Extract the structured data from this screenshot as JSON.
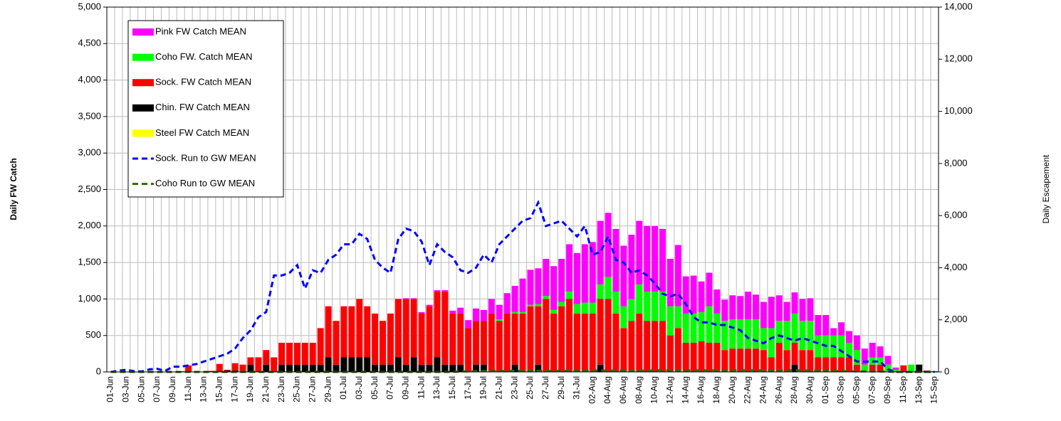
{
  "chart_data": {
    "type": "bar",
    "ylabel": "Daily FW Catch",
    "y2label": "Daily Escapement",
    "grid": true,
    "legend": "top-left",
    "ylim": [
      0,
      5000
    ],
    "yticks": [
      0,
      500,
      {
        "value": 1000,
        "label": "1,000"
      },
      {
        "value": 1500,
        "label": "1,500"
      },
      {
        "value": 2000,
        "label": "2,000"
      },
      {
        "value": 2500,
        "label": "2,500"
      },
      {
        "value": 3000,
        "label": "3,000"
      },
      {
        "value": 3500,
        "label": "3,500"
      },
      {
        "value": 4000,
        "label": "4,000"
      },
      {
        "value": 4500,
        "label": "4,500"
      },
      {
        "value": 5000,
        "label": "5,000"
      }
    ],
    "y2lim": [
      0,
      14000
    ],
    "y2ticks": [
      0,
      {
        "value": 2000,
        "label": "2,000"
      },
      {
        "value": 4000,
        "label": "4,000"
      },
      {
        "value": 6000,
        "label": "6,000"
      },
      {
        "value": 8000,
        "label": "8,000"
      },
      {
        "value": 10000,
        "label": "10,000"
      },
      {
        "value": 12000,
        "label": "12,000"
      },
      {
        "value": 14000,
        "label": "14,000"
      }
    ],
    "categories": [
      "01-Jun",
      null,
      "03-Jun",
      null,
      "05-Jun",
      null,
      "07-Jun",
      null,
      "09-Jun",
      null,
      "11-Jun",
      null,
      "13-Jun",
      null,
      "15-Jun",
      null,
      "17-Jun",
      null,
      "19-Jun",
      null,
      "21-Jun",
      null,
      "23-Jun",
      null,
      "25-Jun",
      null,
      "27-Jun",
      null,
      "29-Jun",
      null,
      "01-Jul",
      null,
      "03-Jul",
      null,
      "05-Jul",
      null,
      "07-Jul",
      null,
      "09-Jul",
      null,
      "11-Jul",
      null,
      "13-Jul",
      null,
      "15-Jul",
      null,
      "17-Jul",
      null,
      "19-Jul",
      null,
      "21-Jul",
      null,
      "23-Jul",
      null,
      "25-Jul",
      null,
      "27-Jul",
      null,
      "29-Jul",
      null,
      "31-Jul",
      null,
      "02-Aug",
      null,
      "04-Aug",
      null,
      "06-Aug",
      null,
      "08-Aug",
      null,
      "10-Aug",
      null,
      "12-Aug",
      null,
      "14-Aug",
      null,
      "16-Aug",
      null,
      "18-Aug",
      null,
      "20-Aug",
      null,
      "22-Aug",
      null,
      "24-Aug",
      null,
      "26-Aug",
      null,
      "28-Aug",
      null,
      "30-Aug",
      null,
      "01-Sep",
      null,
      "03-Sep",
      null,
      "05-Sep",
      null,
      "07-Sep",
      null,
      "09-Sep",
      null,
      "11-Sep",
      null,
      "13-Sep",
      null,
      "15-Sep"
    ],
    "series": [
      {
        "name": "Pink FW Catch MEAN",
        "type": "bar",
        "color": "#ff00ff",
        "values": [
          0,
          0,
          0,
          0,
          0,
          0,
          0,
          0,
          0,
          0,
          0,
          0,
          0,
          0,
          0,
          0,
          0,
          0,
          0,
          0,
          0,
          0,
          0,
          0,
          0,
          0,
          0,
          0,
          0,
          0,
          0,
          0,
          0,
          0,
          0,
          0,
          0,
          0,
          10,
          10,
          20,
          20,
          20,
          20,
          40,
          80,
          110,
          170,
          150,
          200,
          200,
          280,
          360,
          460,
          480,
          490,
          510,
          600,
          590,
          650,
          700,
          800,
          830,
          870,
          880,
          860,
          830,
          880,
          870,
          900,
          900,
          860,
          650,
          840,
          510,
          520,
          420,
          460,
          330,
          290,
          330,
          320,
          380,
          340,
          360,
          430,
          350,
          260,
          290,
          300,
          310,
          280,
          280,
          100,
          180,
          160,
          200,
          220,
          200,
          150,
          120,
          30,
          0,
          0,
          0,
          0,
          0
        ]
      },
      {
        "name": "Coho FW. Catch MEAN",
        "type": "bar",
        "color": "#00ff00",
        "values": [
          0,
          0,
          0,
          0,
          0,
          0,
          0,
          0,
          0,
          0,
          0,
          0,
          0,
          0,
          0,
          0,
          0,
          0,
          0,
          0,
          0,
          0,
          0,
          0,
          0,
          0,
          0,
          0,
          0,
          0,
          0,
          0,
          0,
          0,
          0,
          0,
          0,
          0,
          0,
          0,
          0,
          0,
          0,
          0,
          0,
          0,
          0,
          0,
          0,
          0,
          20,
          0,
          20,
          20,
          20,
          30,
          40,
          50,
          60,
          100,
          130,
          150,
          150,
          200,
          300,
          300,
          300,
          300,
          400,
          400,
          400,
          400,
          400,
          300,
          400,
          400,
          400,
          500,
          400,
          400,
          400,
          400,
          400,
          400,
          300,
          400,
          300,
          400,
          400,
          400,
          400,
          300,
          300,
          300,
          300,
          200,
          200,
          100,
          100,
          100,
          100,
          30,
          0,
          100,
          0,
          0,
          0
        ]
      },
      {
        "name": "Sock. FW Catch MEAN",
        "type": "bar",
        "color": "#ff0000",
        "values": [
          0,
          0,
          0,
          0,
          0,
          0,
          0,
          0,
          0,
          10,
          90,
          0,
          5,
          15,
          110,
          10,
          100,
          100,
          100,
          200,
          200,
          200,
          300,
          300,
          300,
          300,
          300,
          500,
          700,
          600,
          700,
          700,
          800,
          700,
          700,
          600,
          700,
          800,
          900,
          800,
          700,
          800,
          900,
          1000,
          700,
          700,
          600,
          600,
          600,
          800,
          700,
          800,
          700,
          800,
          900,
          800,
          1000,
          800,
          900,
          1000,
          800,
          800,
          800,
          900,
          1000,
          800,
          600,
          700,
          800,
          700,
          700,
          700,
          500,
          600,
          400,
          400,
          420,
          400,
          400,
          300,
          320,
          320,
          320,
          320,
          300,
          200,
          400,
          300,
          300,
          300,
          300,
          200,
          200,
          200,
          200,
          200,
          100,
          0,
          100,
          100,
          0,
          0,
          90,
          0,
          0,
          20,
          10
        ]
      },
      {
        "name": "Chin. FW Catch MEAN",
        "type": "bar",
        "color": "#000000",
        "values": [
          0,
          0,
          0,
          0,
          0,
          0,
          0,
          0,
          0,
          0,
          0,
          0,
          0,
          0,
          0,
          20,
          20,
          0,
          100,
          0,
          100,
          0,
          100,
          100,
          100,
          100,
          100,
          100,
          200,
          100,
          200,
          200,
          200,
          200,
          100,
          100,
          100,
          200,
          100,
          200,
          100,
          100,
          200,
          100,
          100,
          100,
          0,
          100,
          100,
          0,
          0,
          0,
          100,
          0,
          0,
          100,
          0,
          0,
          0,
          0,
          0,
          0,
          0,
          100,
          0,
          0,
          0,
          0,
          0,
          0,
          0,
          0,
          0,
          0,
          0,
          0,
          0,
          0,
          0,
          0,
          0,
          0,
          0,
          0,
          0,
          0,
          0,
          0,
          100,
          0,
          0,
          0,
          0,
          0,
          0,
          0,
          0,
          0,
          0,
          0,
          0,
          0,
          0,
          0,
          100,
          0,
          0
        ]
      },
      {
        "name": "Steel FW Catch MEAN",
        "type": "bar",
        "color": "#ffff00",
        "values": [
          0,
          0,
          0,
          0,
          0,
          0,
          0,
          0,
          0,
          0,
          0,
          0,
          0,
          0,
          0,
          0,
          0,
          0,
          0,
          0,
          0,
          0,
          0,
          0,
          0,
          0,
          0,
          0,
          0,
          0,
          0,
          0,
          0,
          0,
          0,
          0,
          0,
          0,
          0,
          0,
          0,
          0,
          0,
          0,
          0,
          0,
          0,
          0,
          0,
          0,
          0,
          0,
          0,
          0,
          0,
          0,
          0,
          0,
          0,
          0,
          0,
          0,
          0,
          0,
          0,
          0,
          0,
          0,
          0,
          0,
          0,
          0,
          0,
          0,
          0,
          0,
          0,
          0,
          0,
          0,
          0,
          0,
          0,
          0,
          0,
          0,
          0,
          0,
          0,
          0,
          0,
          0,
          0,
          0,
          0,
          0,
          0,
          0,
          0,
          0,
          0,
          0,
          0,
          0,
          0,
          0,
          0
        ]
      },
      {
        "name": "Sock. Run to GW MEAN",
        "type": "line",
        "axis": "y2",
        "color": "#0000ff",
        "values": [
          0,
          50,
          80,
          30,
          20,
          100,
          120,
          40,
          200,
          200,
          250,
          300,
          400,
          500,
          600,
          700,
          900,
          1300,
          1600,
          2100,
          2300,
          3700,
          3700,
          3800,
          4100,
          3200,
          3900,
          3800,
          4300,
          4500,
          4900,
          4900,
          5300,
          5100,
          4300,
          4000,
          3800,
          5100,
          5500,
          5400,
          5000,
          4100,
          4900,
          4600,
          4400,
          3900,
          3800,
          4000,
          4500,
          4200,
          4900,
          5200,
          5500,
          5800,
          5900,
          6500,
          5600,
          5700,
          5800,
          5500,
          5200,
          5600,
          4500,
          4600,
          5200,
          4300,
          4200,
          3800,
          3900,
          3700,
          3400,
          3000,
          2900,
          3000,
          2600,
          2100,
          1900,
          1900,
          1800,
          1800,
          1700,
          1600,
          1300,
          1200,
          1100,
          1300,
          1400,
          1300,
          1200,
          1300,
          1200,
          1100,
          1000,
          1000,
          800,
          600,
          400,
          400,
          400,
          400,
          100,
          0,
          0,
          0,
          0,
          0,
          0
        ]
      },
      {
        "name": "Coho Run to GW MEAN",
        "type": "line",
        "axis": "y2",
        "color": "#336600",
        "values": [
          0,
          0,
          0,
          0,
          0,
          0,
          0,
          0,
          0,
          0,
          0,
          0,
          0,
          0,
          0,
          0,
          0,
          0,
          0,
          0,
          0,
          0,
          0,
          0,
          0,
          0,
          0,
          0,
          0,
          0,
          0,
          0,
          0,
          0,
          0,
          0,
          0,
          0,
          0,
          0,
          0,
          0,
          0,
          0,
          0,
          20,
          20,
          30,
          30,
          30,
          40,
          40,
          40,
          40,
          40,
          40,
          40,
          40,
          40,
          40,
          50,
          50,
          50,
          50,
          50,
          50,
          50,
          50,
          50,
          50,
          60,
          60,
          60,
          60,
          60,
          60,
          60,
          60,
          60,
          60,
          60,
          60,
          60,
          60,
          60,
          60,
          60,
          60,
          60,
          60,
          50,
          50,
          40,
          40,
          30,
          30,
          20,
          20,
          20,
          20,
          10,
          0,
          0,
          0,
          0,
          0,
          0
        ]
      }
    ]
  }
}
